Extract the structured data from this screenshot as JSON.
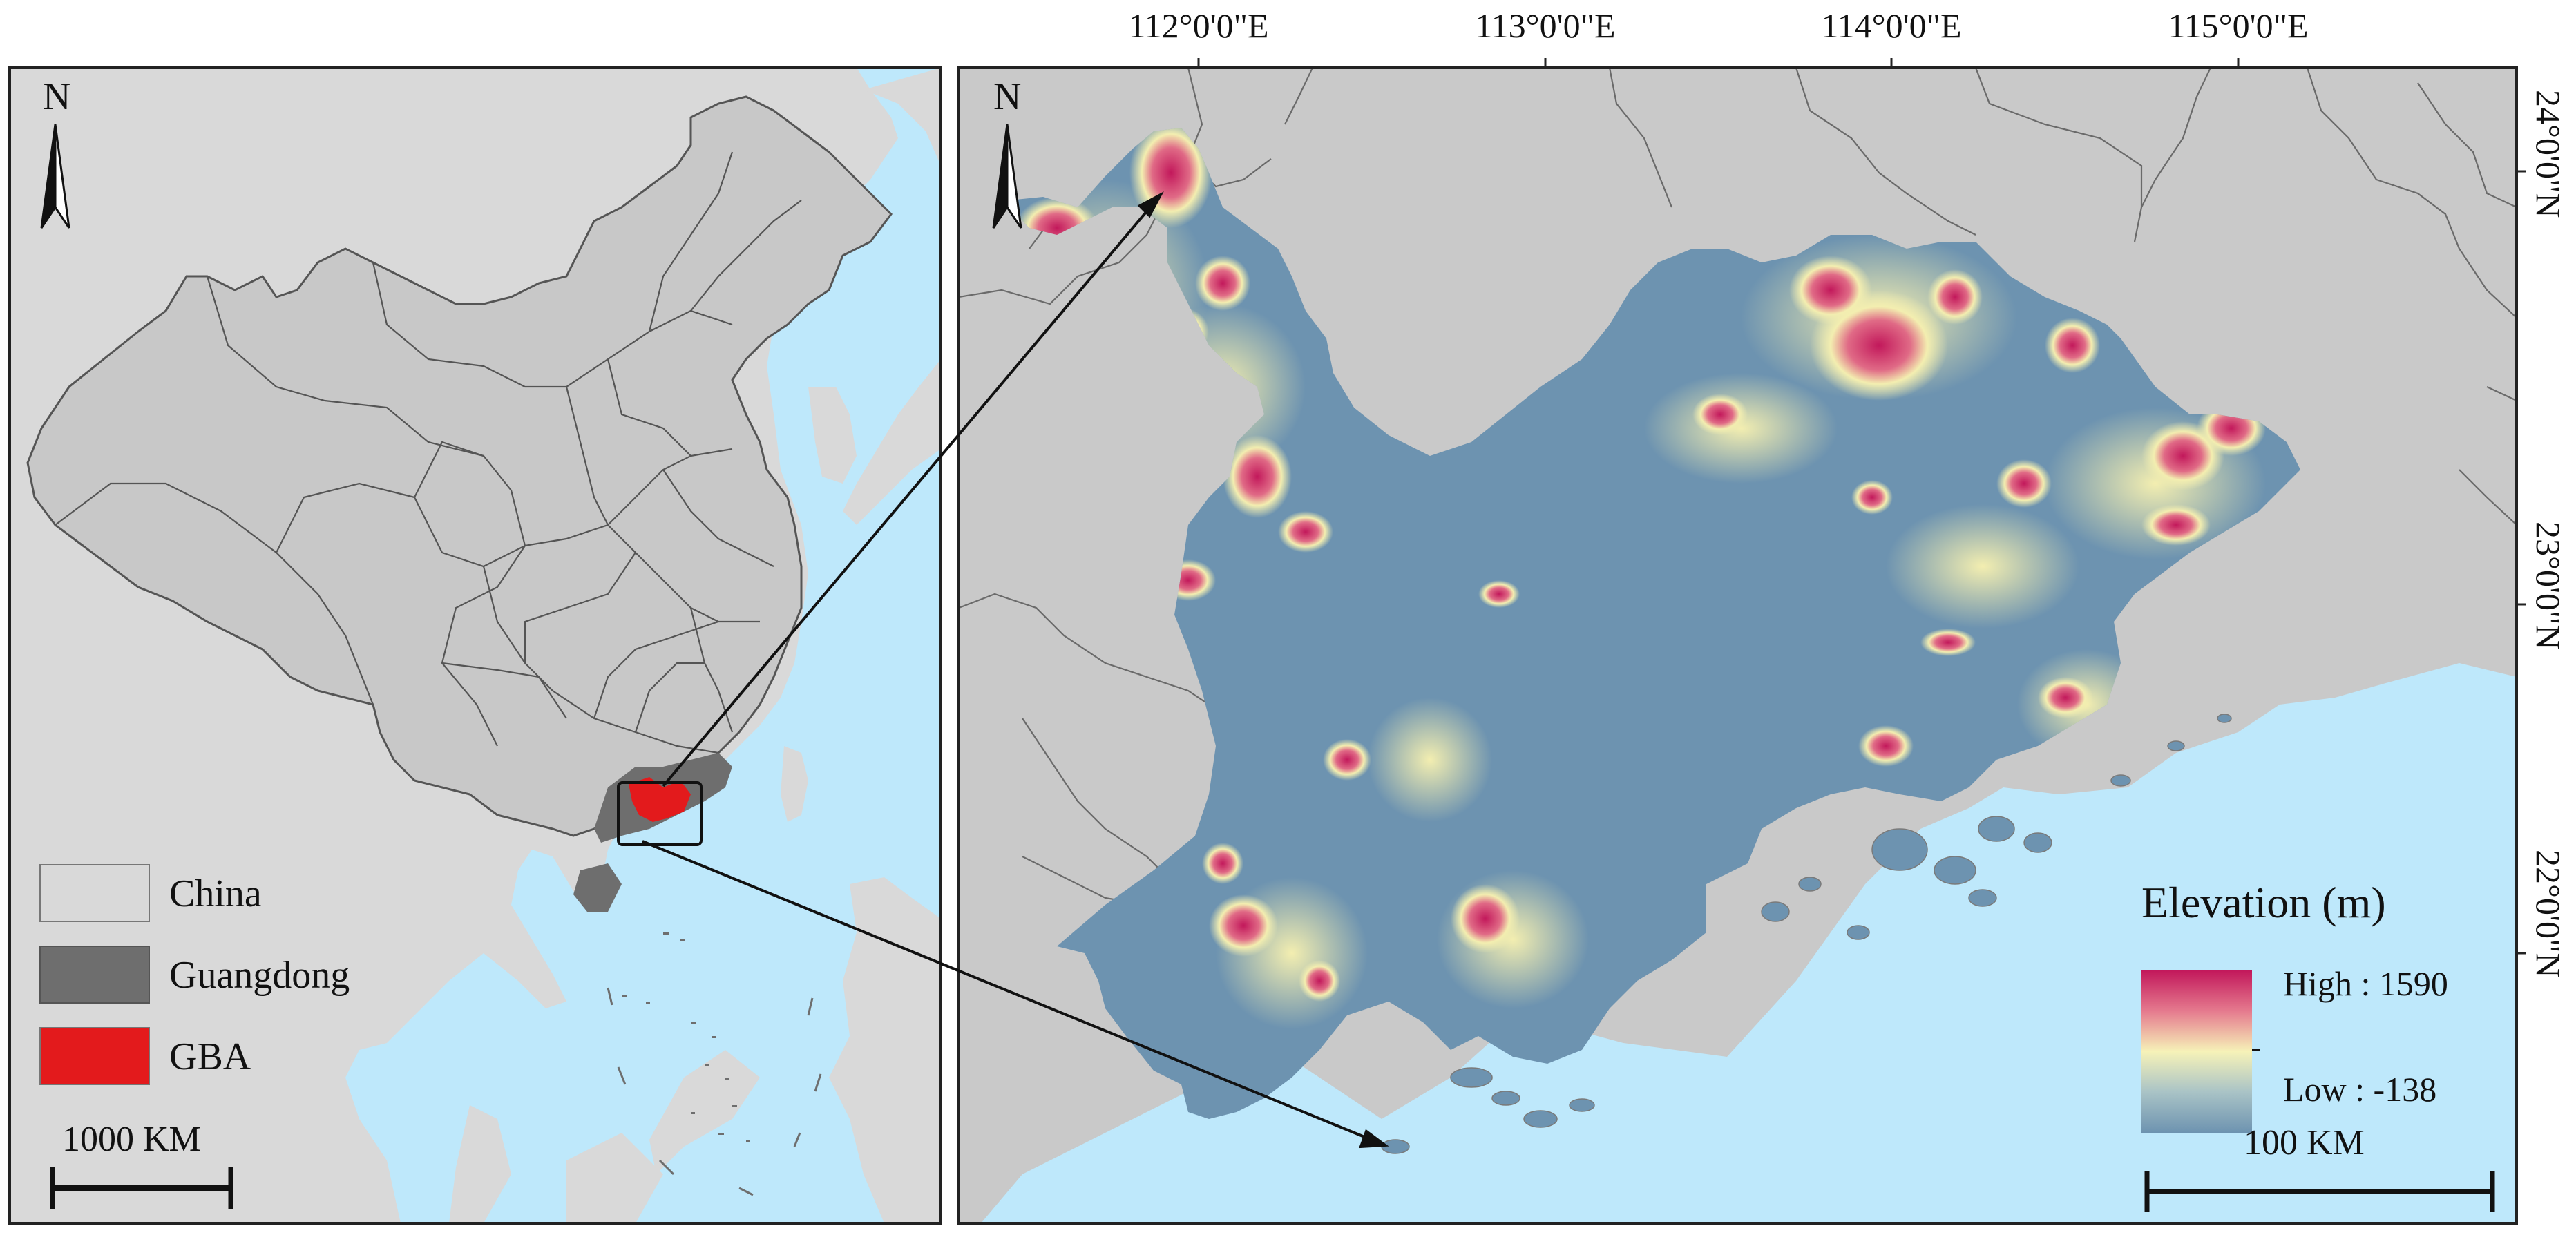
{
  "left_map": {
    "north_label": "N",
    "legend": [
      {
        "label": "China",
        "color": "#d9d9d9"
      },
      {
        "label": "Guangdong",
        "color": "#6e6e6e"
      },
      {
        "label": "GBA",
        "color": "#e31a1c"
      }
    ],
    "scale_label": "1000 KM"
  },
  "right_map": {
    "north_label": "N",
    "longitude_labels": [
      "112°0'0\"E",
      "113°0'0\"E",
      "114°0'0\"E",
      "115°0'0\"E"
    ],
    "latitude_labels": [
      "24°0'0\"N",
      "23°0'0\"N",
      "22°0'0\"N"
    ],
    "elevation_legend": {
      "title": "Elevation (m)",
      "high_label": "High : 1590",
      "low_label": "Low : -138",
      "high_value": 1590,
      "low_value": -138
    },
    "scale_label": "100 KM"
  },
  "colors": {
    "sea": "#bee8fb",
    "land": "#d9d9d9",
    "outside_land": "#c9c9c9",
    "guangdong": "#6e6e6e",
    "gba": "#e31a1c",
    "elev_high": "#c2185b",
    "elev_mid": "#f6f2b8",
    "elev_low": "#6d93b0"
  }
}
